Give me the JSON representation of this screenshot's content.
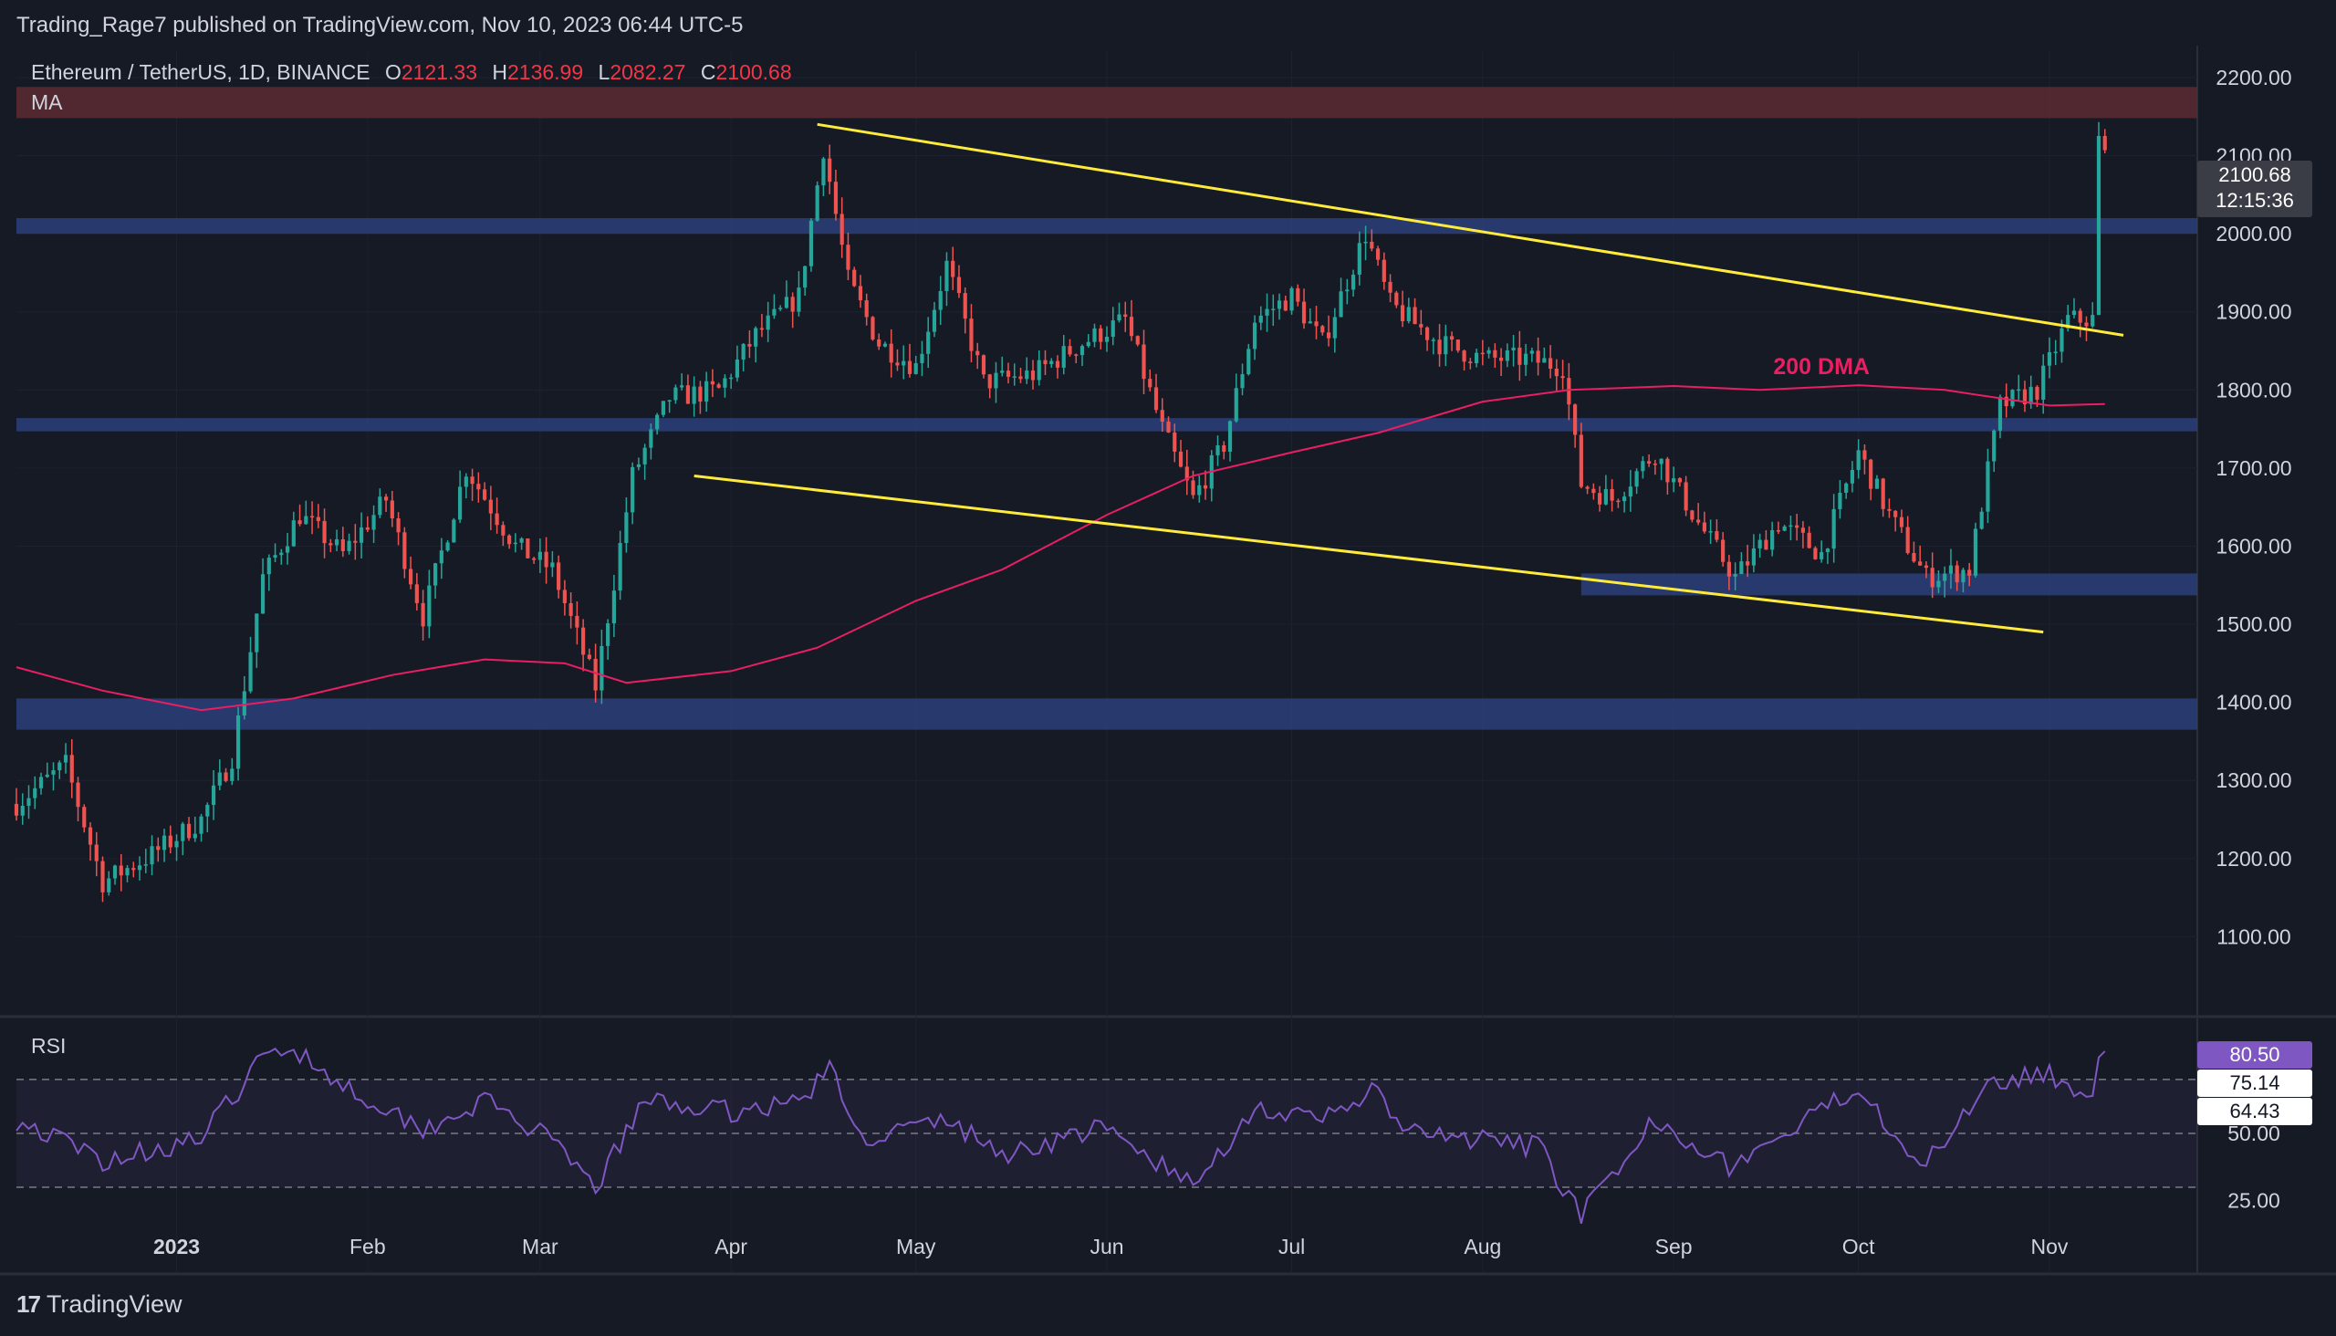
{
  "header": {
    "publisher": "Trading_Rage7 published on TradingView.com, Nov 10, 2023 06:44 UTC-5",
    "symbol": "Ethereum / TetherUS, 1D, BINANCE",
    "open_label": "O",
    "open": "2121.33",
    "high_label": "H",
    "high": "2136.99",
    "low_label": "L",
    "low": "2082.27",
    "close_label": "C",
    "close": "2100.68",
    "indicator": "MA"
  },
  "price_box": {
    "price": "2100.68",
    "countdown": "12:15:36"
  },
  "rsi_panel": {
    "label": "RSI",
    "value": "80.50",
    "ma_value_1": "75.14",
    "ma_value_2": "64.43",
    "axis_labels": [
      "50.00",
      "25.00"
    ]
  },
  "annotation": {
    "text": "200 DMA",
    "color": "#e91e63"
  },
  "brand": {
    "logo": "17",
    "name": "TradingView"
  },
  "colors": {
    "background": "#161a25",
    "up_candle": "#26a69a",
    "down_candle": "#ef5350",
    "trendline": "#ffeb3b",
    "support_zone": "#2c3f7a",
    "resistance_zone": "#5c2a33",
    "ma_200": "#e91e63",
    "rsi_line": "#7e57c2"
  },
  "chart_data": {
    "type": "candlestick",
    "symbol": "ETHUSDT",
    "interval": "1D",
    "y_axis_ticks": [
      "2200.00",
      "2100.00",
      "2000.00",
      "1900.00",
      "1800.00",
      "1700.00",
      "1600.00",
      "1500.00",
      "1400.00",
      "1300.00",
      "1200.00",
      "1100.00"
    ],
    "ylim": [
      1000,
      2235
    ],
    "x_axis_labels": [
      {
        "label": "2023",
        "date": "2023-01-01"
      },
      {
        "label": "Feb",
        "date": "2023-02-01"
      },
      {
        "label": "Mar",
        "date": "2023-03-01"
      },
      {
        "label": "Apr",
        "date": "2023-04-01"
      },
      {
        "label": "May",
        "date": "2023-05-01"
      },
      {
        "label": "Jun",
        "date": "2023-06-01"
      },
      {
        "label": "Jul",
        "date": "2023-07-01"
      },
      {
        "label": "Aug",
        "date": "2023-08-01"
      },
      {
        "label": "Sep",
        "date": "2023-09-01"
      },
      {
        "label": "Oct",
        "date": "2023-10-01"
      },
      {
        "label": "Nov",
        "date": "2023-11-01"
      }
    ],
    "x_range": [
      "2022-12-06",
      "2023-11-25"
    ],
    "price_path": [
      [
        "2022-12-06",
        1270
      ],
      [
        "2022-12-14",
        1320
      ],
      [
        "2022-12-20",
        1170
      ],
      [
        "2022-12-28",
        1205
      ],
      [
        "2023-01-05",
        1250
      ],
      [
        "2023-01-10",
        1330
      ],
      [
        "2023-01-15",
        1560
      ],
      [
        "2023-01-21",
        1640
      ],
      [
        "2023-01-28",
        1590
      ],
      [
        "2023-02-04",
        1660
      ],
      [
        "2023-02-10",
        1510
      ],
      [
        "2023-02-17",
        1700
      ],
      [
        "2023-02-25",
        1600
      ],
      [
        "2023-03-03",
        1570
      ],
      [
        "2023-03-10",
        1420
      ],
      [
        "2023-03-16",
        1690
      ],
      [
        "2023-03-22",
        1790
      ],
      [
        "2023-03-30",
        1800
      ],
      [
        "2023-04-05",
        1870
      ],
      [
        "2023-04-12",
        1920
      ],
      [
        "2023-04-16",
        2110
      ],
      [
        "2023-04-20",
        1940
      ],
      [
        "2023-04-25",
        1860
      ],
      [
        "2023-05-01",
        1830
      ],
      [
        "2023-05-06",
        1960
      ],
      [
        "2023-05-12",
        1810
      ],
      [
        "2023-05-20",
        1820
      ],
      [
        "2023-05-28",
        1860
      ],
      [
        "2023-06-04",
        1890
      ],
      [
        "2023-06-10",
        1750
      ],
      [
        "2023-06-15",
        1660
      ],
      [
        "2023-06-20",
        1730
      ],
      [
        "2023-06-25",
        1890
      ],
      [
        "2023-07-01",
        1920
      ],
      [
        "2023-07-06",
        1860
      ],
      [
        "2023-07-13",
        2000
      ],
      [
        "2023-07-17",
        1910
      ],
      [
        "2023-07-25",
        1860
      ],
      [
        "2023-08-01",
        1840
      ],
      [
        "2023-08-08",
        1840
      ],
      [
        "2023-08-14",
        1830
      ],
      [
        "2023-08-17",
        1680
      ],
      [
        "2023-08-22",
        1660
      ],
      [
        "2023-08-29",
        1720
      ],
      [
        "2023-09-05",
        1630
      ],
      [
        "2023-09-11",
        1560
      ],
      [
        "2023-09-18",
        1630
      ],
      [
        "2023-09-25",
        1590
      ],
      [
        "2023-10-01",
        1720
      ],
      [
        "2023-10-06",
        1640
      ],
      [
        "2023-10-12",
        1560
      ],
      [
        "2023-10-19",
        1570
      ],
      [
        "2023-10-24",
        1780
      ],
      [
        "2023-10-30",
        1800
      ],
      [
        "2023-11-04",
        1890
      ],
      [
        "2023-11-08",
        1890
      ],
      [
        "2023-11-09",
        2120
      ],
      [
        "2023-11-10",
        2100
      ]
    ],
    "ma_200": [
      [
        "2022-12-06",
        1445
      ],
      [
        "2022-12-20",
        1415
      ],
      [
        "2023-01-05",
        1390
      ],
      [
        "2023-01-20",
        1405
      ],
      [
        "2023-02-05",
        1435
      ],
      [
        "2023-02-20",
        1455
      ],
      [
        "2023-03-05",
        1450
      ],
      [
        "2023-03-15",
        1425
      ],
      [
        "2023-04-01",
        1440
      ],
      [
        "2023-04-15",
        1470
      ],
      [
        "2023-05-01",
        1530
      ],
      [
        "2023-05-15",
        1570
      ],
      [
        "2023-06-01",
        1640
      ],
      [
        "2023-06-15",
        1690
      ],
      [
        "2023-07-01",
        1720
      ],
      [
        "2023-07-15",
        1745
      ],
      [
        "2023-08-01",
        1785
      ],
      [
        "2023-08-15",
        1800
      ],
      [
        "2023-09-01",
        1805
      ],
      [
        "2023-09-15",
        1800
      ],
      [
        "2023-10-01",
        1806
      ],
      [
        "2023-10-15",
        1800
      ],
      [
        "2023-11-01",
        1780
      ],
      [
        "2023-11-10",
        1782
      ]
    ],
    "trendlines": [
      {
        "name": "upper",
        "points": [
          [
            "2023-04-15",
            2140
          ],
          [
            "2023-11-13",
            1870
          ]
        ]
      },
      {
        "name": "lower",
        "points": [
          [
            "2023-03-26",
            1690
          ],
          [
            "2023-10-31",
            1490
          ]
        ]
      }
    ],
    "zones": [
      {
        "kind": "resistance",
        "from": 2148,
        "to": 2188
      },
      {
        "kind": "support",
        "from": 2000,
        "to": 2020
      },
      {
        "kind": "support",
        "from": 1747,
        "to": 1764
      },
      {
        "kind": "support",
        "from": 1537,
        "to": 1565,
        "start_date": "2023-08-17"
      },
      {
        "kind": "support",
        "from": 1365,
        "to": 1405
      }
    ],
    "rsi": {
      "levels": [
        70,
        50,
        30
      ],
      "axis_ticks": [
        50,
        25
      ],
      "ylim": [
        10,
        92
      ],
      "path": [
        [
          "2022-12-06",
          55
        ],
        [
          "2022-12-20",
          40
        ],
        [
          "2023-01-05",
          48
        ],
        [
          "2023-01-15",
          78
        ],
        [
          "2023-01-20",
          82
        ],
        [
          "2023-01-28",
          68
        ],
        [
          "2023-02-10",
          52
        ],
        [
          "2023-02-20",
          62
        ],
        [
          "2023-03-01",
          50
        ],
        [
          "2023-03-10",
          30
        ],
        [
          "2023-03-18",
          62
        ],
        [
          "2023-04-01",
          58
        ],
        [
          "2023-04-12",
          62
        ],
        [
          "2023-04-17",
          74
        ],
        [
          "2023-04-22",
          48
        ],
        [
          "2023-05-06",
          55
        ],
        [
          "2023-05-15",
          42
        ],
        [
          "2023-05-31",
          52
        ],
        [
          "2023-06-10",
          38
        ],
        [
          "2023-06-15",
          30
        ],
        [
          "2023-06-25",
          60
        ],
        [
          "2023-07-05",
          54
        ],
        [
          "2023-07-14",
          66
        ],
        [
          "2023-07-20",
          50
        ],
        [
          "2023-08-10",
          45
        ],
        [
          "2023-08-17",
          20
        ],
        [
          "2023-08-25",
          40
        ],
        [
          "2023-08-29",
          56
        ],
        [
          "2023-09-10",
          38
        ],
        [
          "2023-09-20",
          50
        ],
        [
          "2023-10-01",
          68
        ],
        [
          "2023-10-07",
          50
        ],
        [
          "2023-10-12",
          38
        ],
        [
          "2023-10-22",
          70
        ],
        [
          "2023-11-01",
          72
        ],
        [
          "2023-11-08",
          64
        ],
        [
          "2023-11-09",
          82
        ],
        [
          "2023-11-10",
          80.5
        ]
      ]
    }
  }
}
